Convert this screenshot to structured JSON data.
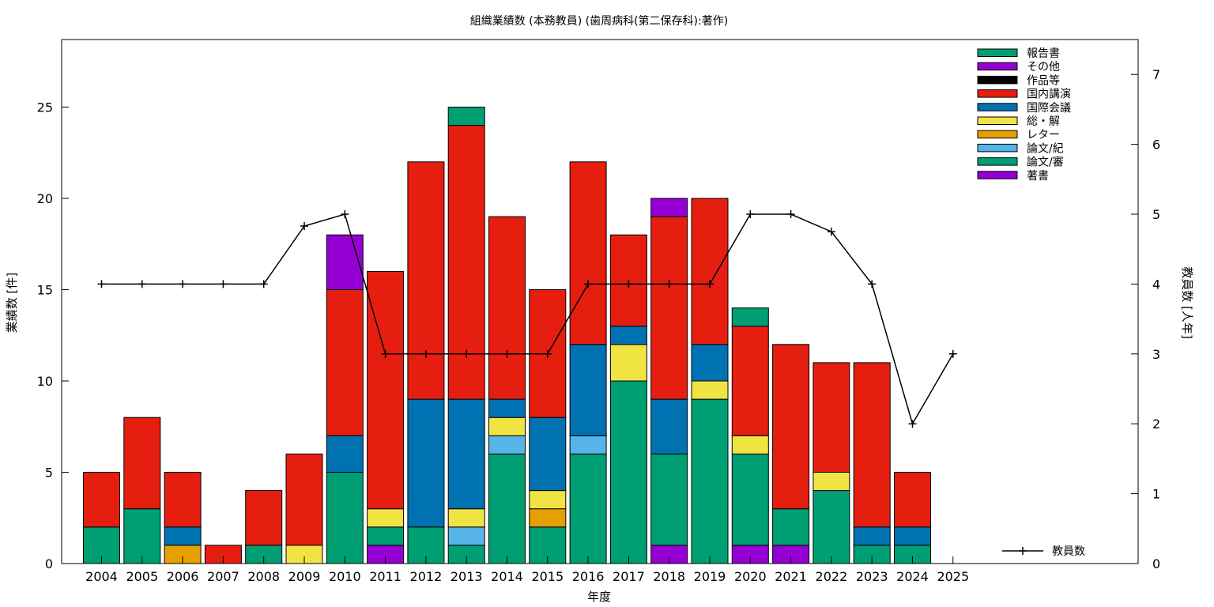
{
  "chart_data": {
    "type": "bar",
    "stacked": true,
    "title": "組織業績数 (本務教員) (歯周病科(第二保存科):著作)",
    "xlabel": "年度",
    "ylabel": "業績数 [件]",
    "y2label": "教員数 [人年]",
    "categories": [
      "2004",
      "2005",
      "2006",
      "2007",
      "2008",
      "2009",
      "2010",
      "2011",
      "2012",
      "2013",
      "2014",
      "2015",
      "2016",
      "2017",
      "2018",
      "2019",
      "2020",
      "2021",
      "2022",
      "2023",
      "2024",
      "2025"
    ],
    "ylim": [
      0,
      28.7
    ],
    "y2lim": [
      0,
      7.5
    ],
    "yticks": [
      0,
      5,
      10,
      15,
      20,
      25
    ],
    "y2ticks": [
      0,
      1,
      2,
      3,
      4,
      5,
      6,
      7
    ],
    "legend_position": "top-right",
    "series": [
      {
        "name": "著書",
        "color": "#9400d3",
        "values": [
          0,
          0,
          0,
          0,
          0,
          0,
          0,
          1,
          0,
          0,
          0,
          0,
          0,
          0,
          1,
          0,
          1,
          1,
          0,
          0,
          0,
          0
        ]
      },
      {
        "name": "論文/審",
        "color": "#009e73",
        "values": [
          2,
          3,
          0,
          0,
          1,
          0,
          5,
          1,
          2,
          1,
          6,
          2,
          6,
          10,
          5,
          9,
          5,
          2,
          4,
          1,
          1,
          0
        ]
      },
      {
        "name": "論文/紀",
        "color": "#56b4e9",
        "values": [
          0,
          0,
          0,
          0,
          0,
          0,
          0,
          0,
          0,
          1,
          1,
          0,
          1,
          0,
          0,
          0,
          0,
          0,
          0,
          0,
          0,
          0
        ]
      },
      {
        "name": "レター",
        "color": "#e69f00",
        "values": [
          0,
          0,
          1,
          0,
          0,
          0,
          0,
          0,
          0,
          0,
          0,
          1,
          0,
          0,
          0,
          0,
          0,
          0,
          0,
          0,
          0,
          0
        ]
      },
      {
        "name": "総・解",
        "color": "#f0e442",
        "values": [
          0,
          0,
          0,
          0,
          0,
          1,
          0,
          1,
          0,
          1,
          1,
          1,
          0,
          2,
          0,
          1,
          1,
          0,
          1,
          0,
          0,
          0
        ]
      },
      {
        "name": "国際会議",
        "color": "#0072b2",
        "values": [
          0,
          0,
          1,
          0,
          0,
          0,
          2,
          0,
          7,
          6,
          1,
          4,
          5,
          1,
          3,
          2,
          0,
          0,
          0,
          1,
          1,
          0
        ]
      },
      {
        "name": "国内講演",
        "color": "#e51e10",
        "values": [
          3,
          5,
          3,
          1,
          3,
          5,
          8,
          13,
          13,
          15,
          10,
          7,
          10,
          5,
          10,
          8,
          6,
          9,
          6,
          9,
          3,
          0
        ]
      },
      {
        "name": "作品等",
        "color": "#000000",
        "values": [
          0,
          0,
          0,
          0,
          0,
          0,
          0,
          0,
          0,
          0,
          0,
          0,
          0,
          0,
          0,
          0,
          0,
          0,
          0,
          0,
          0,
          0
        ]
      },
      {
        "name": "その他",
        "color": "#9400d3",
        "values": [
          0,
          0,
          0,
          0,
          0,
          0,
          3,
          0,
          0,
          0,
          0,
          0,
          0,
          0,
          1,
          0,
          0,
          0,
          0,
          0,
          0,
          0
        ]
      },
      {
        "name": "報告書",
        "color": "#009e73",
        "values": [
          0,
          0,
          0,
          0,
          0,
          0,
          0,
          0,
          0,
          1,
          0,
          0,
          0,
          0,
          0,
          0,
          1,
          0,
          0,
          0,
          0,
          0
        ]
      }
    ],
    "line_series": {
      "name": "教員数",
      "axis": "y2",
      "color": "#000000",
      "values": [
        4,
        4,
        4,
        4,
        4,
        4.83,
        5,
        3,
        3,
        3,
        3,
        3,
        4,
        4,
        4,
        4,
        5,
        5,
        4.75,
        4,
        2,
        3
      ]
    }
  }
}
